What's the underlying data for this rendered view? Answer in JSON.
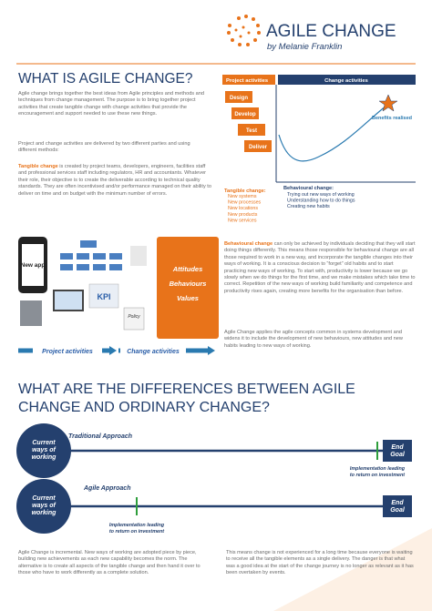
{
  "header": {
    "title": "AGILE CHANGE",
    "subtitle": "by Melanie Franklin"
  },
  "section1": {
    "heading": "WHAT IS AGILE CHANGE?",
    "paragraphs": [
      "Agile change brings together the best ideas from Agile principles and methods and techniques from change management. The purpose is to bring together project activities that create tangible change with change activities that provide the encouragement and support needed to use these new things.",
      "Project and change activities are delivered by two different parties and using different methods:"
    ],
    "tangible": {
      "lead": "Tangible change",
      "text": " is created by project teams, developers, engineers, facilities staff and professional services staff including regulators, HR and accountants. Whatever their role, their objective is to create the deliverable according to technical quality standards. They are often incentivised and/or performance managed on their ability to deliver on time and on budget with the minimum number of errors."
    },
    "behavioural": {
      "lead": "Behavioural change",
      "text": " can only be achieved by individuals deciding that they will start doing things differently. This means those responsible for behavioural change are all those required to work in a new way, and incorporate the tangible changes into their ways of working. It is a conscious decision to “forget” old habits and to start practicing new ways of working. To start with, productivity is lower because we go slowly when we do things for the first time, and we make mistakes which take time to correct. Repetition of the new ways of working build familiarity and competence and productivity rises again, creating more benefits for the organisation than before."
    },
    "closing": "Agile Change applies the agile concepts common in systems development and widens it to include the development of new behaviours, new attitudes and new habits leading to new ways of working."
  },
  "diagram": {
    "project_header": "Project activities",
    "change_header": "Change activities",
    "steps": [
      "Design",
      "Develop",
      "Test",
      "Deliver"
    ],
    "benefits": "Benefits realised",
    "tangible_title": "Tangible change:",
    "tangible_items": [
      "New systems",
      "New processes",
      "New locations",
      "New products",
      "New services"
    ],
    "behavioural_title": "Behavioural change:",
    "behavioural_items": [
      "Trying out new ways of working",
      "Understanding how to do things",
      "Creating new habits"
    ]
  },
  "illustration": {
    "phone": "New app",
    "kpi": "KPI",
    "policy": "Policy",
    "box": [
      "Attitudes",
      "Behaviours",
      "Values"
    ],
    "arrow_left": "Project activities",
    "arrow_right": "Change activities"
  },
  "section2": {
    "heading": "WHAT ARE THE DIFFERENCES BETWEEN AGILE CHANGE AND ORDINARY CHANGE?",
    "traditional": {
      "start": "Current ways of working",
      "label": "Traditional Approach",
      "end": "End Goal",
      "milestone": "Implementation leading to return on investment"
    },
    "agile": {
      "start": "Current ways of working",
      "label": "Agile Approach",
      "end": "End Goal",
      "milestone": "Implementation leading to return on investment"
    },
    "paragraphs": [
      "Agile Change is incremental. New ways of working are adopted piece by piece, building new achievements as each new capability becomes the norm. The alternative is to create all aspects of the tangible change and then hand it over to those who have to work differently as a complete solution.",
      "This means change is not experienced for a long time because everyone is waiting to receive all the tangible elements as a single delivery. The danger is that what was a good idea at the start of the change journey is no longer as relevant as it has been overtaken by events."
    ]
  }
}
